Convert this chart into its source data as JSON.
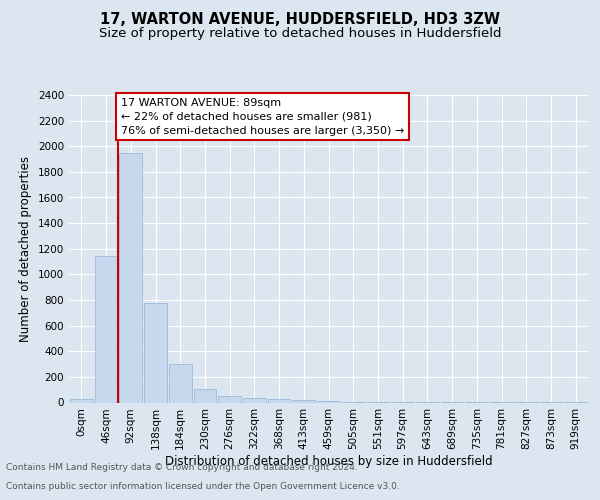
{
  "title": "17, WARTON AVENUE, HUDDERSFIELD, HD3 3ZW",
  "subtitle": "Size of property relative to detached houses in Huddersfield",
  "xlabel": "Distribution of detached houses by size in Huddersfield",
  "ylabel": "Number of detached properties",
  "bar_labels": [
    "0sqm",
    "46sqm",
    "92sqm",
    "138sqm",
    "184sqm",
    "230sqm",
    "276sqm",
    "322sqm",
    "368sqm",
    "413sqm",
    "459sqm",
    "505sqm",
    "551sqm",
    "597sqm",
    "643sqm",
    "689sqm",
    "735sqm",
    "781sqm",
    "827sqm",
    "873sqm",
    "919sqm"
  ],
  "bar_values": [
    30,
    1140,
    1950,
    775,
    300,
    105,
    50,
    35,
    25,
    20,
    8,
    4,
    4,
    3,
    3,
    2,
    2,
    2,
    2,
    1,
    1
  ],
  "bar_color": "#c5d8ee",
  "bar_edge_color": "#9bbcda",
  "annotation_text": "17 WARTON AVENUE: 89sqm\n← 22% of detached houses are smaller (981)\n76% of semi-detached houses are larger (3,350) →",
  "annotation_box_color": "#ffffff",
  "annotation_box_edge_color": "#cc0000",
  "vline_color": "#cc0000",
  "ylim": [
    0,
    2400
  ],
  "yticks": [
    0,
    200,
    400,
    600,
    800,
    1000,
    1200,
    1400,
    1600,
    1800,
    2000,
    2200,
    2400
  ],
  "title_fontsize": 10.5,
  "subtitle_fontsize": 9.5,
  "xlabel_fontsize": 8.5,
  "ylabel_fontsize": 8.5,
  "tick_fontsize": 7.5,
  "annot_fontsize": 8,
  "footer_line1": "Contains HM Land Registry data © Crown copyright and database right 2024.",
  "footer_line2": "Contains public sector information licensed under the Open Government Licence v3.0.",
  "footer_fontsize": 6.5,
  "background_color": "#dce6f0",
  "plot_bg_color": "#dce6f0",
  "grid_color": "#ffffff"
}
